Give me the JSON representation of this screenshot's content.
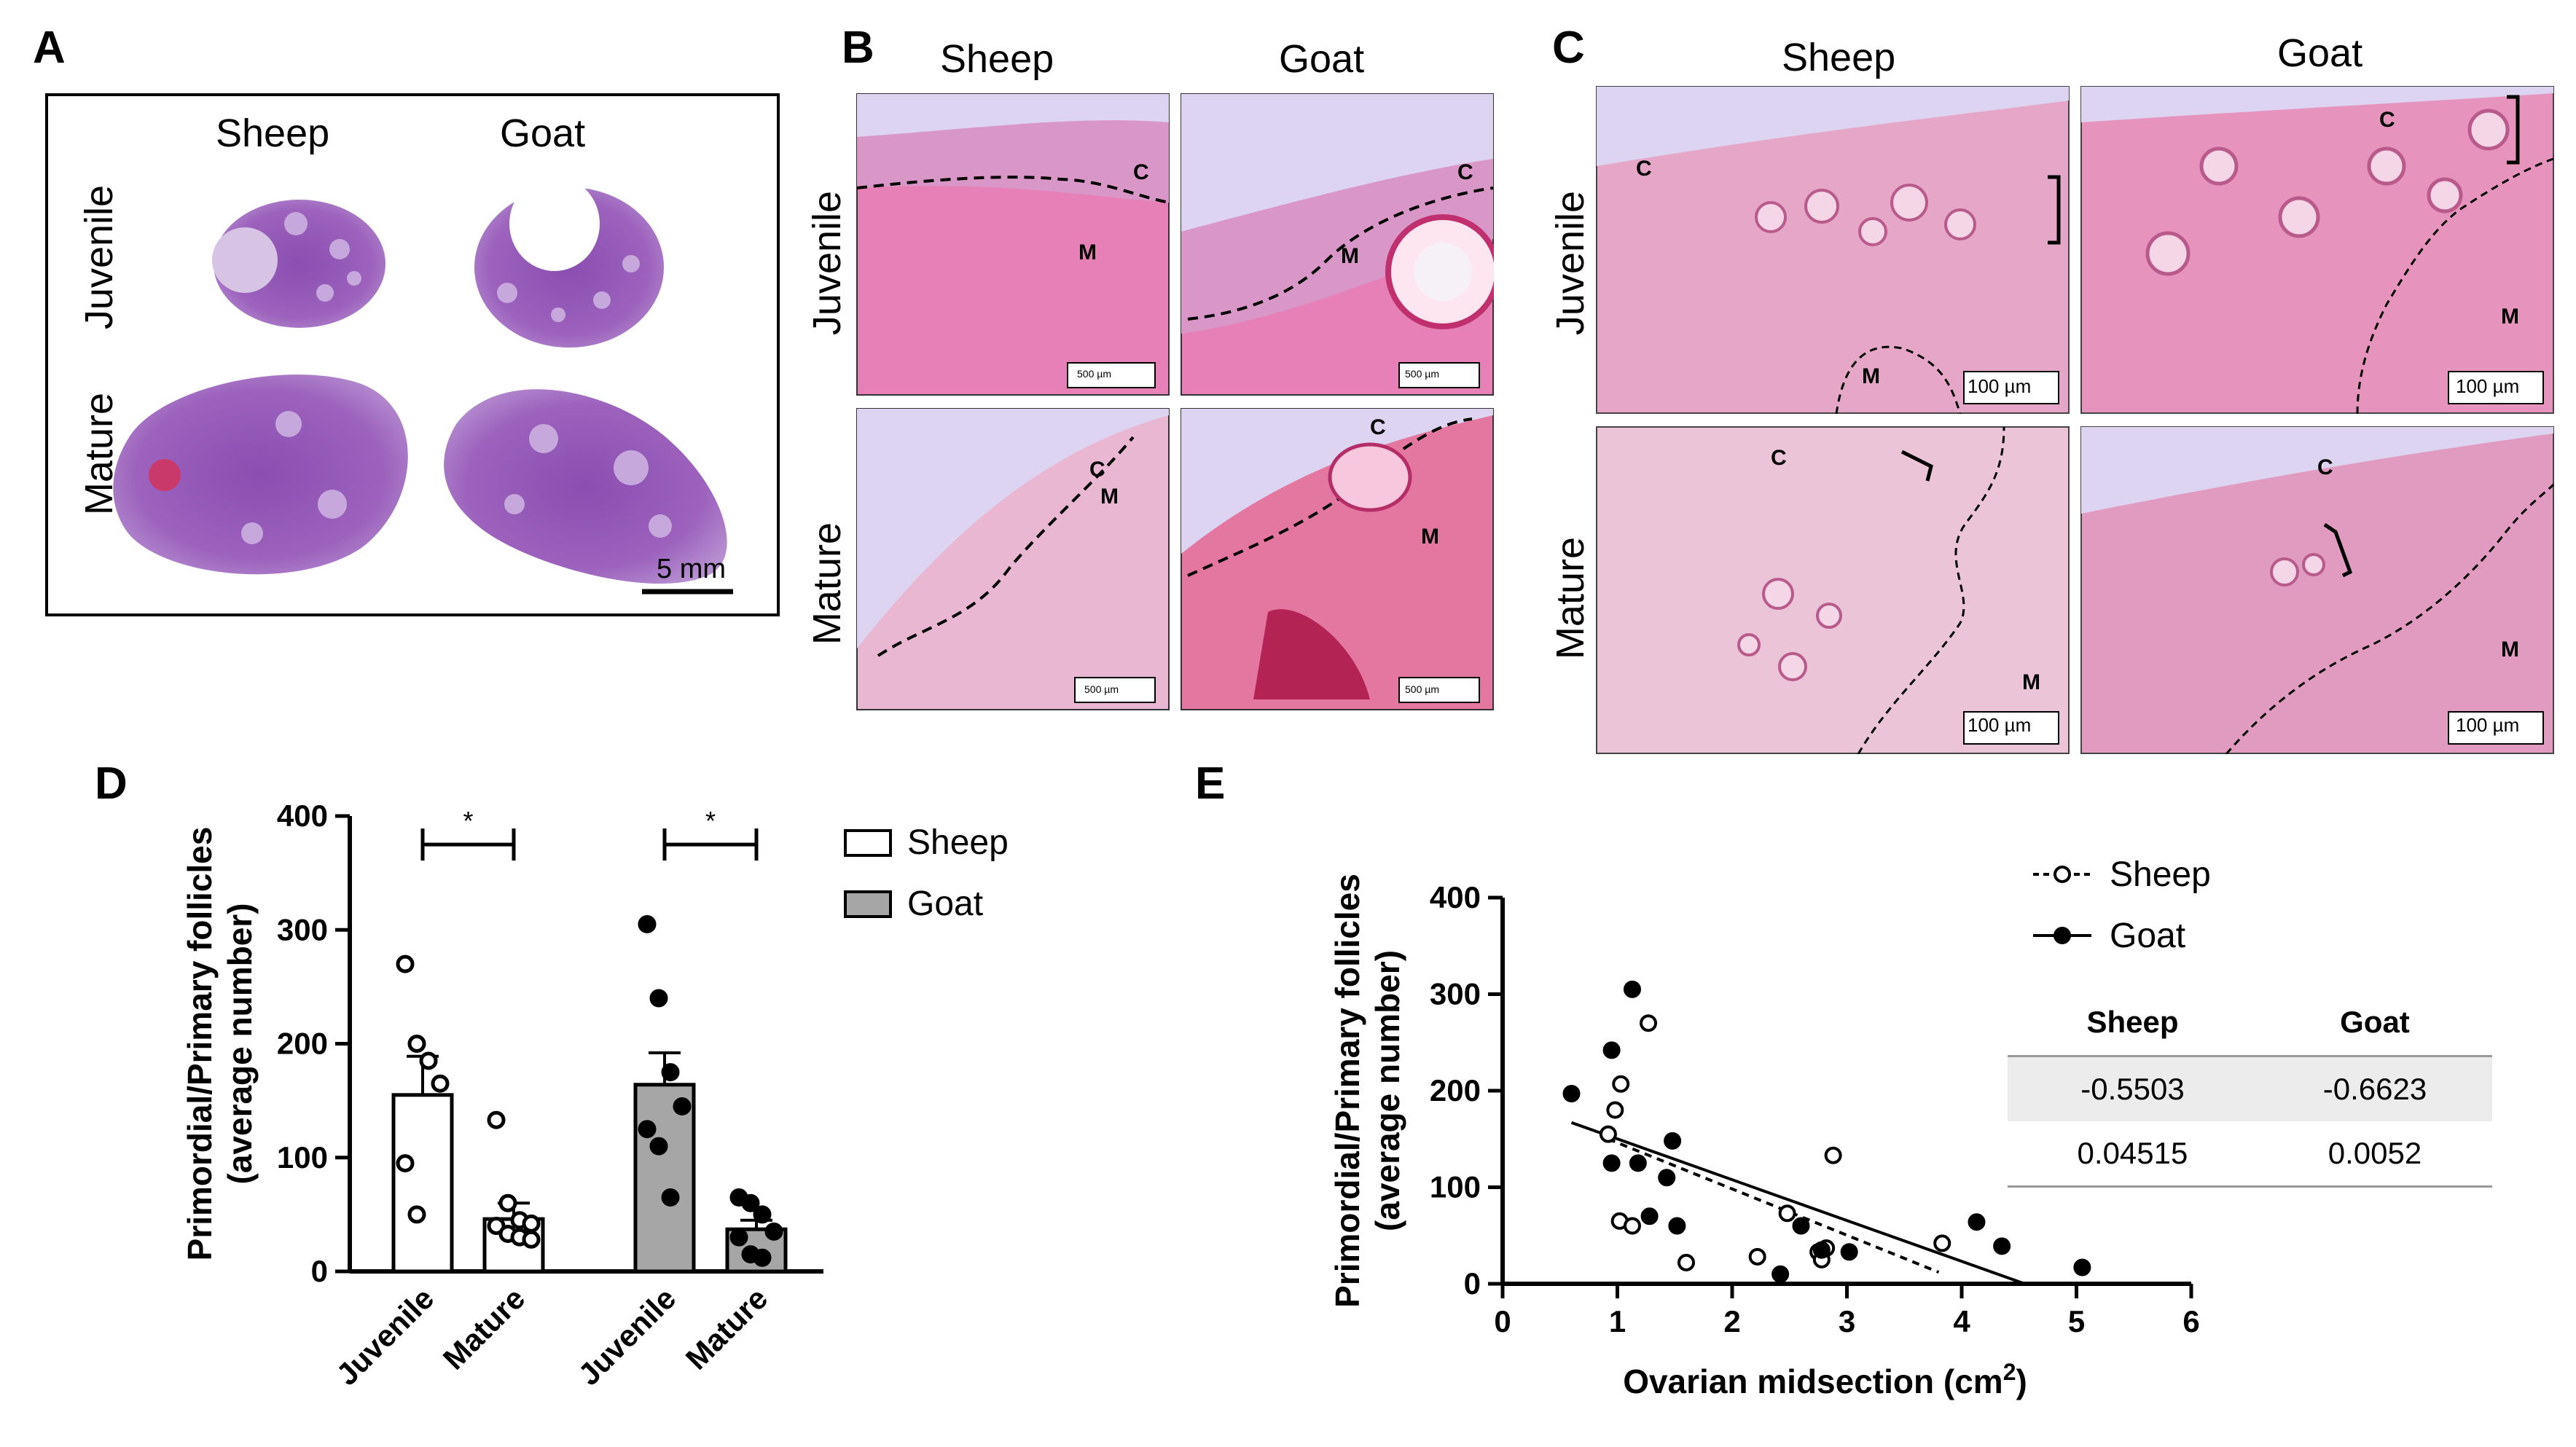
{
  "panels": {
    "A": "A",
    "B": "B",
    "C": "C",
    "D": "D",
    "E": "E"
  },
  "panelA": {
    "col_sheep": "Sheep",
    "col_goat": "Goat",
    "row_juvenile": "Juvenile",
    "row_mature": "Mature",
    "scale": "5 mm"
  },
  "panelB": {
    "col_sheep": "Sheep",
    "col_goat": "Goat",
    "row_juvenile": "Juvenile",
    "row_mature": "Mature",
    "cortex": "C",
    "medulla": "M",
    "scale": "500 µm"
  },
  "panelC": {
    "col_sheep": "Sheep",
    "col_goat": "Goat",
    "row_juvenile": "Juvenile",
    "row_mature": "Mature",
    "cortex": "C",
    "medulla": "M",
    "scale": "100 µm"
  },
  "colors": {
    "sheep_bar": "#ffffff",
    "goat_bar": "#a6a6a6",
    "tissue": "#e48bbd",
    "cortex": "#d897c6",
    "background_slide": "#dcd4f0"
  },
  "chart_data": [
    {
      "type": "bar",
      "ylabel_line1": "Primordial/Primary follicles",
      "ylabel_line2": "(average number)",
      "ylim": [
        0,
        400
      ],
      "yticks": [
        0,
        100,
        200,
        300,
        400
      ],
      "categories": [
        "Juvenile",
        "Mature",
        "Juvenile",
        "Mature"
      ],
      "legend": [
        {
          "name": "Sheep",
          "color": "#ffffff"
        },
        {
          "name": "Goat",
          "color": "#a6a6a6"
        }
      ],
      "significance": "*",
      "series": [
        {
          "name": "Sheep",
          "means": [
            155,
            46
          ],
          "sem": [
            34,
            14
          ],
          "points": [
            [
              270,
              200,
              185,
              165,
              95,
              50
            ],
            [
              133,
              60,
              45,
              42,
              40,
              33,
              30,
              28
            ]
          ]
        },
        {
          "name": "Goat",
          "means": [
            164,
            37
          ],
          "sem": [
            28,
            8
          ],
          "points": [
            [
              305,
              240,
              175,
              145,
              125,
              110,
              65
            ],
            [
              65,
              60,
              50,
              35,
              30,
              15,
              12
            ]
          ]
        }
      ]
    },
    {
      "type": "scatter",
      "xlabel": "Ovarian midsection (cm",
      "xlabel_sup": "2",
      "xlabel_end": ")",
      "ylabel_line1": "Primordial/Primary follicles",
      "ylabel_line2": "(average number)",
      "xlim": [
        0,
        6
      ],
      "ylim": [
        0,
        400
      ],
      "xticks": [
        0,
        1,
        2,
        3,
        4,
        5,
        6
      ],
      "yticks": [
        0,
        100,
        200,
        300,
        400
      ],
      "series": [
        {
          "name": "Sheep",
          "points": [
            [
              0.92,
              155
            ],
            [
              0.98,
              180
            ],
            [
              1.03,
              207
            ],
            [
              1.27,
              270
            ],
            [
              1.02,
              65
            ],
            [
              1.13,
              60
            ],
            [
              1.6,
              22
            ],
            [
              2.22,
              28
            ],
            [
              2.48,
              73
            ],
            [
              2.75,
              33
            ],
            [
              2.78,
              25
            ],
            [
              2.82,
              37
            ],
            [
              2.88,
              133
            ],
            [
              3.83,
              42
            ]
          ],
          "fit": {
            "x": [
              0.92,
              3.8
            ],
            "y": [
              150,
              12
            ]
          }
        },
        {
          "name": "Goat",
          "points": [
            [
              0.6,
              197
            ],
            [
              0.95,
              242
            ],
            [
              0.95,
              125
            ],
            [
              1.13,
              305
            ],
            [
              1.18,
              125
            ],
            [
              1.28,
              70
            ],
            [
              1.48,
              148
            ],
            [
              1.43,
              110
            ],
            [
              1.52,
              60
            ],
            [
              2.42,
              10
            ],
            [
              2.6,
              60
            ],
            [
              2.78,
              35
            ],
            [
              3.02,
              33
            ],
            [
              4.13,
              64
            ],
            [
              4.35,
              39
            ],
            [
              5.05,
              17
            ]
          ],
          "fit": {
            "x": [
              0.6,
              4.55
            ],
            "y": [
              167,
              0
            ]
          }
        }
      ],
      "table": {
        "headers": [
          "Sheep",
          "Goat"
        ],
        "rows": [
          [
            "-0.5503",
            "-0.6623"
          ],
          [
            "0.04515",
            "0.0052"
          ]
        ]
      }
    }
  ]
}
